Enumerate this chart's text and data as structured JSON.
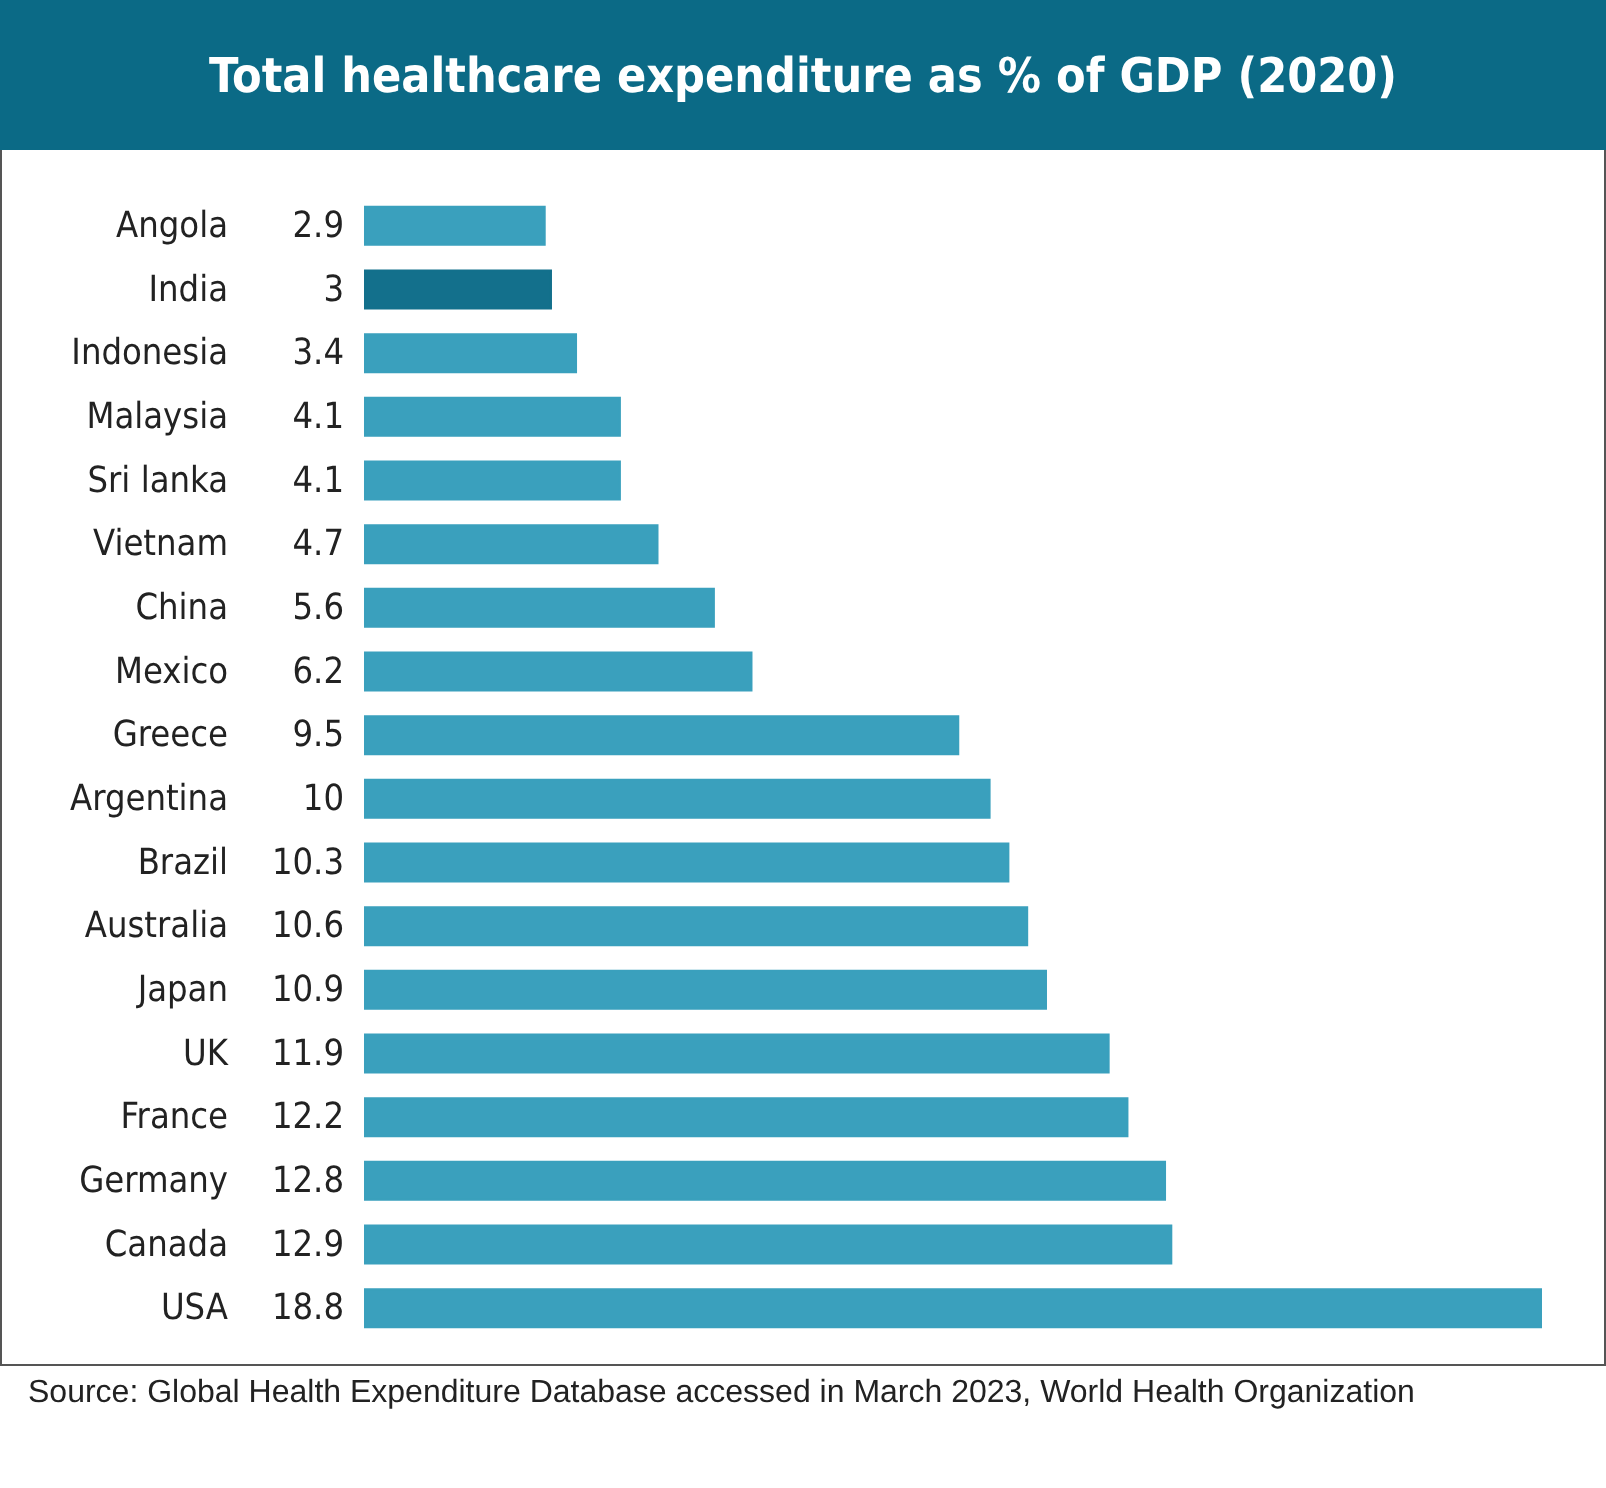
{
  "chart_data": {
    "type": "bar",
    "orientation": "horizontal",
    "title": "Total healthcare expenditure as % of GDP (2020)",
    "categories": [
      "Angola",
      "India",
      "Indonesia",
      "Malaysia",
      "Sri lanka",
      "Vietnam",
      "China",
      "Mexico",
      "Greece",
      "Argentina",
      "Brazil",
      "Australia",
      "Japan",
      "UK",
      "France",
      "Germany",
      "Canada",
      "USA"
    ],
    "values": [
      2.9,
      3,
      3.4,
      4.1,
      4.1,
      4.7,
      5.6,
      6.2,
      9.5,
      10,
      10.3,
      10.6,
      10.9,
      11.9,
      12.2,
      12.8,
      12.9,
      18.8
    ],
    "colors": [
      "#3aa0bd",
      "#13708c",
      "#3aa0bd",
      "#3aa0bd",
      "#3aa0bd",
      "#3aa0bd",
      "#3aa0bd",
      "#3aa0bd",
      "#3aa0bd",
      "#3aa0bd",
      "#3aa0bd",
      "#3aa0bd",
      "#3aa0bd",
      "#3aa0bd",
      "#3aa0bd",
      "#3aa0bd",
      "#3aa0bd",
      "#3aa0bd"
    ],
    "data_labels": true,
    "annotations": [
      "Source: Global Health Expenditure Database accessed in March 2023, World Health Organization"
    ]
  }
}
